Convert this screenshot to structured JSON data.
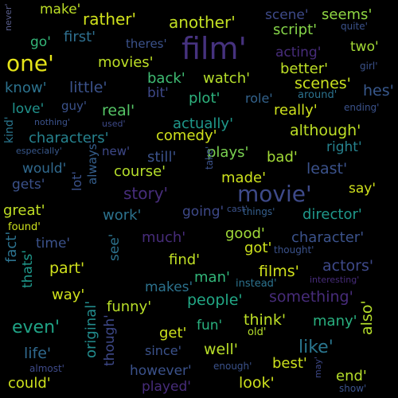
{
  "words": [
    {
      "text": "make'",
      "color": "#bddf26"
    },
    {
      "text": "rather'",
      "color": "#d0e11c"
    },
    {
      "text": "another'",
      "color": "#c2df23"
    },
    {
      "text": "scene'",
      "color": "#3e4a89"
    },
    {
      "text": "seems'",
      "color": "#90d743"
    },
    {
      "text": "film'",
      "color": "#46327e"
    },
    {
      "text": "first'",
      "color": "#2e6e8e"
    },
    {
      "text": "script'",
      "color": "#86d549"
    },
    {
      "text": "quite'",
      "color": "#3b528b"
    },
    {
      "text": "go'",
      "color": "#35b779"
    },
    {
      "text": "theres'",
      "color": "#3b528b"
    },
    {
      "text": "two'",
      "color": "#a5db36"
    },
    {
      "text": "one'",
      "color": "#e5e419"
    },
    {
      "text": "acting'",
      "color": "#472c7a"
    },
    {
      "text": "never'",
      "color": "#5a5f8f"
    },
    {
      "text": "movies'",
      "color": "#bddf26"
    },
    {
      "text": "girl'",
      "color": "#3b528b"
    },
    {
      "text": "better'",
      "color": "#bddf26"
    },
    {
      "text": "back'",
      "color": "#3fbc73"
    },
    {
      "text": "watch'",
      "color": "#b5de2b"
    },
    {
      "text": "scenes'",
      "color": "#cae11f"
    },
    {
      "text": "know'",
      "color": "#2c728e"
    },
    {
      "text": "little'",
      "color": "#3b528b"
    },
    {
      "text": "hes'",
      "color": "#38588c"
    },
    {
      "text": "bit'",
      "color": "#3e4989"
    },
    {
      "text": "plot'",
      "color": "#2db27d"
    },
    {
      "text": "role'",
      "color": "#33638d"
    },
    {
      "text": "around'",
      "color": "#2c728e"
    },
    {
      "text": "love'",
      "color": "#20928c"
    },
    {
      "text": "guy'",
      "color": "#3b528b"
    },
    {
      "text": "real'",
      "color": "#56c667"
    },
    {
      "text": "really'",
      "color": "#cde11d"
    },
    {
      "text": "ending'",
      "color": "#3b528b"
    },
    {
      "text": "nothing'",
      "color": "#3b528b"
    },
    {
      "text": "used'",
      "color": "#3e4a89"
    },
    {
      "text": "actually'",
      "color": "#1f988b"
    },
    {
      "text": "kind'",
      "color": "#2a768e"
    },
    {
      "text": "characters'",
      "color": "#26828e"
    },
    {
      "text": "comedy'",
      "color": "#d0e11c"
    },
    {
      "text": "although'",
      "color": "#bddf26"
    },
    {
      "text": "especially'",
      "color": "#38588c"
    },
    {
      "text": "new'",
      "color": "#3e4989"
    },
    {
      "text": "plays'",
      "color": "#7ad151"
    },
    {
      "text": "right'",
      "color": "#26828e"
    },
    {
      "text": "still'",
      "color": "#3b528b"
    },
    {
      "text": "bad'",
      "color": "#a2da37"
    },
    {
      "text": "would'",
      "color": "#30698e"
    },
    {
      "text": "course'",
      "color": "#b5de2b"
    },
    {
      "text": "made'",
      "color": "#cde11d"
    },
    {
      "text": "least'",
      "color": "#3b528b"
    },
    {
      "text": "gets'",
      "color": "#3b528b"
    },
    {
      "text": "lot'",
      "color": "#3b528b"
    },
    {
      "text": "always'",
      "color": "#355f8d"
    },
    {
      "text": "take'",
      "color": "#3b528b"
    },
    {
      "text": "story'",
      "color": "#472d7b"
    },
    {
      "text": "movie'",
      "color": "#3e4a89"
    },
    {
      "text": "say'",
      "color": "#d0e11c"
    },
    {
      "text": "great'",
      "color": "#c0df25"
    },
    {
      "text": "going'",
      "color": "#3e4989"
    },
    {
      "text": "cast'",
      "color": "#3b528b"
    },
    {
      "text": "things'",
      "color": "#355f8d"
    },
    {
      "text": "director'",
      "color": "#1f988b"
    },
    {
      "text": "work'",
      "color": "#2c728e"
    },
    {
      "text": "found'",
      "color": "#cde11d"
    },
    {
      "text": "good'",
      "color": "#a0da39"
    },
    {
      "text": "character'",
      "color": "#3b528b"
    },
    {
      "text": "time'",
      "color": "#3b528b"
    },
    {
      "text": "much'",
      "color": "#472c7a"
    },
    {
      "text": "fact'",
      "color": "#2c728e"
    },
    {
      "text": "got'",
      "color": "#cde11d"
    },
    {
      "text": "thought'",
      "color": "#3b528b"
    },
    {
      "text": "thats'",
      "color": "#1f988b"
    },
    {
      "text": "see'",
      "color": "#2c728e"
    },
    {
      "text": "find'",
      "color": "#c0df25"
    },
    {
      "text": "films'",
      "color": "#d0e11c"
    },
    {
      "text": "actors'",
      "color": "#3e4989"
    },
    {
      "text": "part'",
      "color": "#d0e11c"
    },
    {
      "text": "man'",
      "color": "#32b67a"
    },
    {
      "text": "instead'",
      "color": "#2c728e"
    },
    {
      "text": "interesting'",
      "color": "#472c7a"
    },
    {
      "text": "way'",
      "color": "#d0e11c"
    },
    {
      "text": "makes'",
      "color": "#2c728e"
    },
    {
      "text": "something'",
      "color": "#472c7a"
    },
    {
      "text": "funny'",
      "color": "#b8de29"
    },
    {
      "text": "people'",
      "color": "#22a785"
    },
    {
      "text": "even'",
      "color": "#20a386"
    },
    {
      "text": "original'",
      "color": "#228c8d"
    },
    {
      "text": "think'",
      "color": "#bddf26"
    },
    {
      "text": "many'",
      "color": "#29af7f"
    },
    {
      "text": "also'",
      "color": "#b5de2b"
    },
    {
      "text": "fun'",
      "color": "#2ab07f"
    },
    {
      "text": "get'",
      "color": "#cde11d"
    },
    {
      "text": "old'",
      "color": "#b5de2b"
    },
    {
      "text": "though'",
      "color": "#3e4989"
    },
    {
      "text": "life'",
      "color": "#30698e"
    },
    {
      "text": "since'",
      "color": "#3b528b"
    },
    {
      "text": "well'",
      "color": "#b8de29"
    },
    {
      "text": "like'",
      "color": "#2a768e"
    },
    {
      "text": "almost'",
      "color": "#3e4a89"
    },
    {
      "text": "however'",
      "color": "#3b528b"
    },
    {
      "text": "enough'",
      "color": "#3b528b"
    },
    {
      "text": "best'",
      "color": "#cde11d"
    },
    {
      "text": "may'",
      "color": "#3e4989"
    },
    {
      "text": "could'",
      "color": "#cde11d"
    },
    {
      "text": "played'",
      "color": "#472c7a"
    },
    {
      "text": "look'",
      "color": "#cde11d"
    },
    {
      "text": "end'",
      "color": "#b5de2b"
    },
    {
      "text": "show'",
      "color": "#3b528b"
    }
  ]
}
